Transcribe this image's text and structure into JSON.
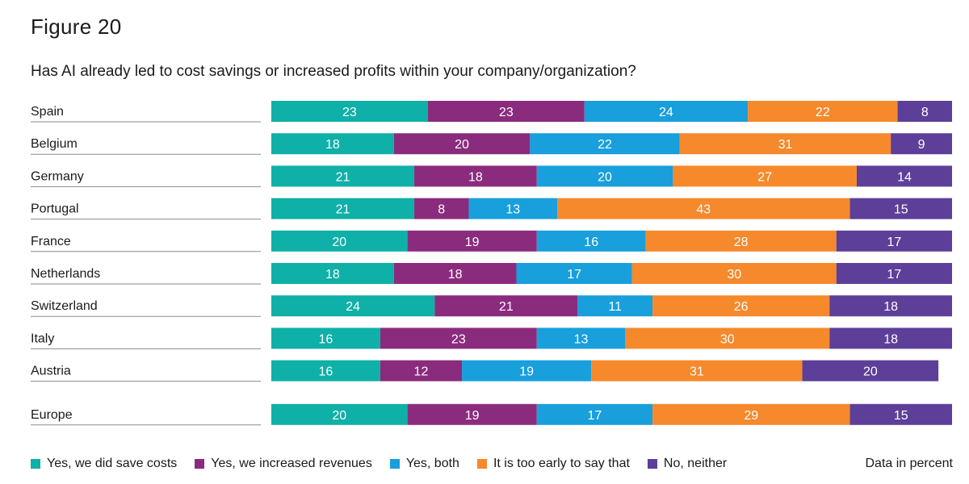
{
  "figure_label": "Figure 20",
  "question": "Has AI already led to cost savings or increased profits within your company/organization?",
  "note": "Data in percent",
  "colors": {
    "save_costs": "#0fb0a7",
    "increased_revenues": "#8b2b7e",
    "both": "#189fdc",
    "too_early": "#f5892c",
    "neither": "#5d3f99"
  },
  "chart_data": {
    "type": "bar",
    "orientation": "horizontal",
    "stacked": true,
    "xlim": [
      0,
      100
    ],
    "categories": [
      "Spain",
      "Belgium",
      "Germany",
      "Portugal",
      "France",
      "Netherlands",
      "Switzerland",
      "Italy",
      "Austria",
      "Europe"
    ],
    "series": [
      {
        "name": "Yes, we did save costs",
        "color": "#0fb0a7",
        "values": [
          23,
          18,
          21,
          21,
          20,
          18,
          24,
          16,
          16,
          20
        ]
      },
      {
        "name": "Yes, we increased revenues",
        "color": "#8b2b7e",
        "values": [
          23,
          20,
          18,
          8,
          19,
          18,
          21,
          23,
          12,
          19
        ]
      },
      {
        "name": "Yes, both",
        "color": "#189fdc",
        "values": [
          24,
          22,
          20,
          13,
          16,
          17,
          11,
          13,
          19,
          17
        ]
      },
      {
        "name": "It is too early to say that",
        "color": "#f5892c",
        "values": [
          22,
          31,
          27,
          43,
          28,
          30,
          26,
          30,
          31,
          29
        ]
      },
      {
        "name": "No, neither",
        "color": "#5d3f99",
        "values": [
          8,
          9,
          14,
          15,
          17,
          17,
          18,
          18,
          20,
          15
        ]
      }
    ],
    "legend_position": "bottom",
    "grid": false
  }
}
